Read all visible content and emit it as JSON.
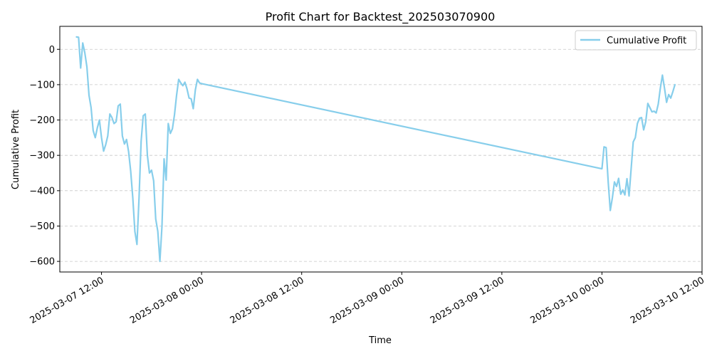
{
  "chart_data": {
    "type": "line",
    "title": "Profit Chart for Backtest_202503070900",
    "xlabel": "Time",
    "ylabel": "Cumulative Profit",
    "xlim": [
      "2025-03-07 07:00",
      "2025-03-10 12:00"
    ],
    "ylim": [
      -630,
      65
    ],
    "x_ticks": [
      "2025-03-07 12:00",
      "2025-03-08 00:00",
      "2025-03-08 12:00",
      "2025-03-09 00:00",
      "2025-03-09 12:00",
      "2025-03-10 00:00",
      "2025-03-10 12:00"
    ],
    "y_ticks": [
      0,
      -100,
      -200,
      -300,
      -400,
      -500,
      -600
    ],
    "grid": "horizontal dashed",
    "legend_position": "upper right",
    "series_color": "#87ceeb",
    "series": [
      {
        "name": "Cumulative Profit",
        "points": [
          [
            "2025-03-07 09:00",
            35
          ],
          [
            "2025-03-07 09:15",
            34
          ],
          [
            "2025-03-07 09:30",
            -53
          ],
          [
            "2025-03-07 09:45",
            18
          ],
          [
            "2025-03-07 10:00",
            -10
          ],
          [
            "2025-03-07 10:15",
            -50
          ],
          [
            "2025-03-07 10:30",
            -130
          ],
          [
            "2025-03-07 10:45",
            -165
          ],
          [
            "2025-03-07 11:00",
            -230
          ],
          [
            "2025-03-07 11:15",
            -250
          ],
          [
            "2025-03-07 11:30",
            -222
          ],
          [
            "2025-03-07 11:45",
            -200
          ],
          [
            "2025-03-07 12:00",
            -250
          ],
          [
            "2025-03-07 12:15",
            -288
          ],
          [
            "2025-03-07 12:30",
            -270
          ],
          [
            "2025-03-07 12:45",
            -245
          ],
          [
            "2025-03-07 13:00",
            -183
          ],
          [
            "2025-03-07 13:15",
            -193
          ],
          [
            "2025-03-07 13:30",
            -210
          ],
          [
            "2025-03-07 13:45",
            -205
          ],
          [
            "2025-03-07 14:00",
            -160
          ],
          [
            "2025-03-07 14:15",
            -155
          ],
          [
            "2025-03-07 14:30",
            -245
          ],
          [
            "2025-03-07 14:45",
            -268
          ],
          [
            "2025-03-07 15:00",
            -255
          ],
          [
            "2025-03-07 15:15",
            -290
          ],
          [
            "2025-03-07 15:30",
            -345
          ],
          [
            "2025-03-07 15:45",
            -420
          ],
          [
            "2025-03-07 16:00",
            -515
          ],
          [
            "2025-03-07 16:15",
            -552
          ],
          [
            "2025-03-07 16:30",
            -420
          ],
          [
            "2025-03-07 16:45",
            -260
          ],
          [
            "2025-03-07 17:00",
            -188
          ],
          [
            "2025-03-07 17:15",
            -183
          ],
          [
            "2025-03-07 17:30",
            -300
          ],
          [
            "2025-03-07 17:45",
            -350
          ],
          [
            "2025-03-07 18:00",
            -342
          ],
          [
            "2025-03-07 18:15",
            -372
          ],
          [
            "2025-03-07 18:30",
            -480
          ],
          [
            "2025-03-07 18:45",
            -515
          ],
          [
            "2025-03-07 19:00",
            -600
          ],
          [
            "2025-03-07 19:15",
            -500
          ],
          [
            "2025-03-07 19:30",
            -310
          ],
          [
            "2025-03-07 19:45",
            -370
          ],
          [
            "2025-03-07 20:00",
            -210
          ],
          [
            "2025-03-07 20:15",
            -238
          ],
          [
            "2025-03-07 20:30",
            -225
          ],
          [
            "2025-03-07 20:45",
            -185
          ],
          [
            "2025-03-07 21:00",
            -130
          ],
          [
            "2025-03-07 21:15",
            -85
          ],
          [
            "2025-03-07 21:30",
            -95
          ],
          [
            "2025-03-07 21:45",
            -103
          ],
          [
            "2025-03-07 22:00",
            -93
          ],
          [
            "2025-03-07 22:15",
            -112
          ],
          [
            "2025-03-07 22:30",
            -138
          ],
          [
            "2025-03-07 22:45",
            -140
          ],
          [
            "2025-03-07 23:00",
            -168
          ],
          [
            "2025-03-07 23:15",
            -115
          ],
          [
            "2025-03-07 23:30",
            -85
          ],
          [
            "2025-03-07 23:45",
            -95
          ],
          [
            "2025-03-08 00:00",
            -97
          ],
          [
            "2025-03-10 00:00",
            -338
          ],
          [
            "2025-03-10 00:15",
            -276
          ],
          [
            "2025-03-10 00:30",
            -278
          ],
          [
            "2025-03-10 00:45",
            -375
          ],
          [
            "2025-03-10 01:00",
            -456
          ],
          [
            "2025-03-10 01:15",
            -420
          ],
          [
            "2025-03-10 01:30",
            -375
          ],
          [
            "2025-03-10 01:45",
            -388
          ],
          [
            "2025-03-10 02:00",
            -365
          ],
          [
            "2025-03-10 02:15",
            -410
          ],
          [
            "2025-03-10 02:30",
            -398
          ],
          [
            "2025-03-10 02:45",
            -412
          ],
          [
            "2025-03-10 03:00",
            -366
          ],
          [
            "2025-03-10 03:15",
            -415
          ],
          [
            "2025-03-10 03:30",
            -338
          ],
          [
            "2025-03-10 03:45",
            -262
          ],
          [
            "2025-03-10 04:00",
            -250
          ],
          [
            "2025-03-10 04:15",
            -210
          ],
          [
            "2025-03-10 04:30",
            -195
          ],
          [
            "2025-03-10 04:45",
            -193
          ],
          [
            "2025-03-10 05:00",
            -228
          ],
          [
            "2025-03-10 05:15",
            -205
          ],
          [
            "2025-03-10 05:30",
            -153
          ],
          [
            "2025-03-10 05:45",
            -165
          ],
          [
            "2025-03-10 06:00",
            -177
          ],
          [
            "2025-03-10 06:15",
            -175
          ],
          [
            "2025-03-10 06:30",
            -180
          ],
          [
            "2025-03-10 06:45",
            -155
          ],
          [
            "2025-03-10 07:00",
            -110
          ],
          [
            "2025-03-10 07:15",
            -73
          ],
          [
            "2025-03-10 07:30",
            -110
          ],
          [
            "2025-03-10 07:45",
            -150
          ],
          [
            "2025-03-10 08:00",
            -128
          ],
          [
            "2025-03-10 08:15",
            -138
          ],
          [
            "2025-03-10 08:30",
            -120
          ],
          [
            "2025-03-10 08:45",
            -100
          ]
        ]
      }
    ]
  }
}
